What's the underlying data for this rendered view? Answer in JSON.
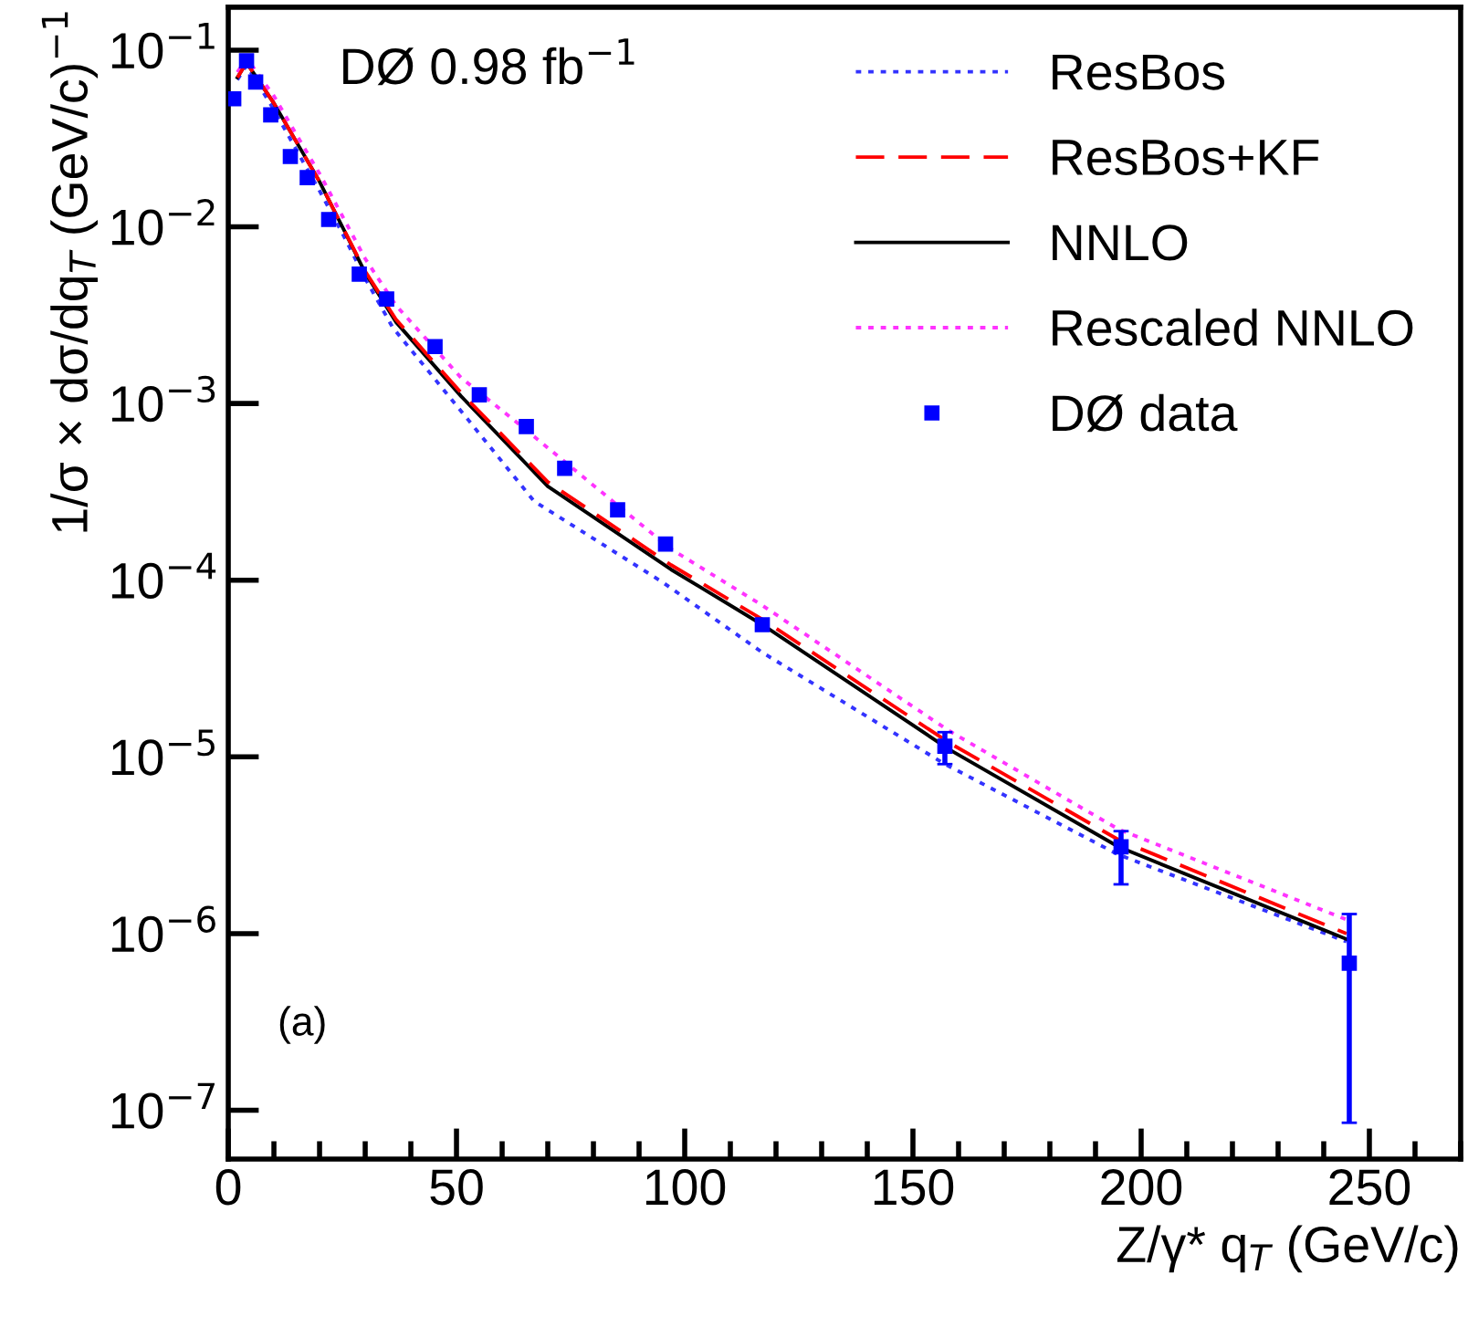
{
  "chart_data": {
    "type": "line",
    "xlabel": "Z/γ* q$_{T}$ (GeV/c)",
    "ylabel": "1/σ × dσ/dq$_{T}$ (GeV/c)$^{−1}$",
    "annotations": [
      "DØ 0.98 fb$^{−1}$",
      "(a)"
    ],
    "log": "y",
    "xlim": [
      0,
      270
    ],
    "ylim": [
      5.3e-08,
      0.175
    ],
    "xticks": [
      0,
      50,
      100,
      150,
      200,
      250
    ],
    "yticks": [
      {
        "value": 1e-07,
        "label": "10$^{−7}$"
      },
      {
        "value": 1e-06,
        "label": "10$^{−6}$"
      },
      {
        "value": 1e-05,
        "label": "10$^{−5}$"
      },
      {
        "value": 0.0001,
        "label": "10$^{−4}$"
      },
      {
        "value": 0.001,
        "label": "10$^{−3}$"
      },
      {
        "value": 0.01,
        "label": "10$^{−2}$"
      },
      {
        "value": 0.1,
        "label": "10$^{−1}$"
      }
    ],
    "grid": false,
    "legend": "top right",
    "series": [
      {
        "name": "ResBos",
        "color": "#3333ff",
        "line_style": "dotted",
        "x": [
          2,
          4,
          10,
          15,
          20,
          25,
          30,
          36,
          52.7,
          67,
          95,
          117,
          157,
          195,
          245
        ],
        "values": [
          0.068,
          0.082,
          0.046,
          0.027,
          0.016,
          0.0092,
          0.0051,
          0.0027,
          0.0008,
          0.00028,
          9.8e-05,
          3.9e-05,
          9.1e-06,
          2.8e-06,
          9e-07
        ]
      },
      {
        "name": "ResBos+KF",
        "color": "#ff0000",
        "line_style": "dashed",
        "x": [
          2,
          4,
          10,
          15,
          20,
          25,
          30,
          36.7,
          51,
          70,
          97,
          117,
          158,
          195,
          245
        ],
        "values": [
          0.07,
          0.085,
          0.05,
          0.03,
          0.018,
          0.01,
          0.0056,
          0.003,
          0.00115,
          0.00036,
          0.000122,
          6e-05,
          1.2e-05,
          3.4e-06,
          1e-06
        ]
      },
      {
        "name": "NNLO",
        "color": "#000000",
        "line_style": "solid",
        "x": [
          2,
          4,
          10,
          15,
          20,
          25,
          30,
          36.7,
          51,
          70,
          97,
          117,
          158,
          195,
          245
        ],
        "values": [
          0.07,
          0.085,
          0.05,
          0.03,
          0.018,
          0.01,
          0.0055,
          0.0029,
          0.0011,
          0.00034,
          0.000115,
          5.6e-05,
          1.1e-05,
          3.1e-06,
          9.3e-07
        ]
      },
      {
        "name": "Rescaled NNLO",
        "color": "#ff33ff",
        "line_style": "dotted",
        "x": [
          2,
          4,
          10,
          15,
          20,
          25,
          30,
          36.7,
          51,
          63,
          97,
          117,
          158,
          195,
          245
        ],
        "values": [
          0.075,
          0.09,
          0.055,
          0.033,
          0.02,
          0.0115,
          0.0066,
          0.0036,
          0.0014,
          0.00079,
          0.00015,
          7.2e-05,
          1.4e-05,
          3.9e-06,
          1.2e-06
        ]
      },
      {
        "name": "DØ data",
        "type": "scatter",
        "color": "#0000ff",
        "marker": "square",
        "x": [
          1.2,
          4,
          6,
          9.3,
          13.6,
          17.3,
          22,
          28.7,
          34.7,
          45.3,
          55,
          65.3,
          73.7,
          85.3,
          95.8,
          117,
          157,
          195.6,
          245.6
        ],
        "values": [
          0.053,
          0.087,
          0.066,
          0.043,
          0.025,
          0.019,
          0.011,
          0.0054,
          0.0039,
          0.0021,
          0.00112,
          0.00074,
          0.00043,
          0.00025,
          0.00016,
          5.6e-05,
          1.15e-05,
          3.1e-06,
          6.8e-07
        ],
        "errors": [
          null,
          null,
          null,
          null,
          null,
          null,
          null,
          null,
          null,
          null,
          null,
          null,
          null,
          null,
          null,
          null,
          [
            9.1e-06,
            1.38e-05
          ],
          [
            1.9e-06,
            3.8e-06
          ],
          [
            8.5e-08,
            1.29e-06
          ]
        ]
      }
    ]
  }
}
